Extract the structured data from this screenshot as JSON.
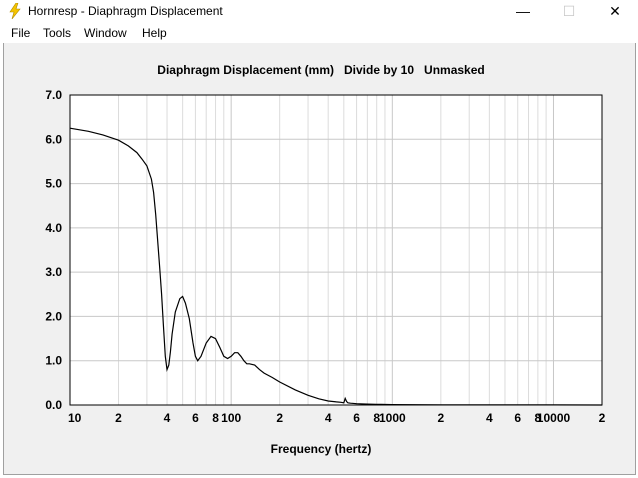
{
  "window": {
    "title": "Hornresp - Diaphragm Displacement",
    "controls": {
      "minimize": "—",
      "maximize": "☐",
      "close": "✕"
    }
  },
  "menu": [
    "File",
    "Tools",
    "Window",
    "Help"
  ],
  "colors": {
    "plot_bg": "#ffffff",
    "client_bg": "#f0f0f0",
    "grid": "#c8c8c8",
    "grid_minor": "#dcdcdc",
    "curve": "#000000"
  },
  "chart_data": {
    "type": "line",
    "title": "Diaphragm Displacement (mm)   Divide by 10   Unmasked",
    "xlabel": "Frequency (hertz)",
    "ylabel": "",
    "x_scale": "log",
    "xlim": [
      10,
      20000
    ],
    "ylim": [
      0,
      7
    ],
    "y_ticks": [
      "0.0",
      "1.0",
      "2.0",
      "3.0",
      "4.0",
      "5.0",
      "6.0",
      "7.0"
    ],
    "x_ticks": [
      {
        "value": 10,
        "label": "10"
      },
      {
        "value": 20,
        "label": "2"
      },
      {
        "value": 40,
        "label": "4"
      },
      {
        "value": 60,
        "label": "6"
      },
      {
        "value": 80,
        "label": "8"
      },
      {
        "value": 100,
        "label": "100"
      },
      {
        "value": 200,
        "label": "2"
      },
      {
        "value": 400,
        "label": "4"
      },
      {
        "value": 600,
        "label": "6"
      },
      {
        "value": 800,
        "label": "8"
      },
      {
        "value": 1000,
        "label": "1000"
      },
      {
        "value": 2000,
        "label": "2"
      },
      {
        "value": 4000,
        "label": "4"
      },
      {
        "value": 6000,
        "label": "6"
      },
      {
        "value": 8000,
        "label": "8"
      },
      {
        "value": 10000,
        "label": "10000"
      },
      {
        "value": 20000,
        "label": "2"
      }
    ],
    "grid": true,
    "legend": "none",
    "series": [
      {
        "x": [
          10,
          13,
          16,
          20,
          23,
          26,
          28,
          30,
          32,
          33,
          34,
          35,
          36,
          37,
          38,
          39,
          40,
          41,
          42,
          43,
          45,
          48,
          50,
          52,
          55,
          58,
          60,
          62,
          65,
          70,
          75,
          80,
          85,
          90,
          95,
          100,
          105,
          110,
          115,
          120,
          125,
          130,
          140,
          150,
          160,
          180,
          200,
          250,
          300,
          350,
          400,
          450,
          480,
          500,
          510,
          520,
          530,
          550,
          600,
          700,
          800,
          1000,
          2000,
          5000,
          10000,
          20000
        ],
        "y": [
          6.25,
          6.18,
          6.1,
          5.98,
          5.85,
          5.7,
          5.55,
          5.4,
          5.1,
          4.8,
          4.3,
          3.7,
          3.1,
          2.5,
          1.8,
          1.1,
          0.8,
          0.9,
          1.2,
          1.6,
          2.1,
          2.4,
          2.45,
          2.3,
          1.95,
          1.4,
          1.1,
          1.0,
          1.1,
          1.4,
          1.55,
          1.5,
          1.3,
          1.1,
          1.05,
          1.1,
          1.18,
          1.18,
          1.1,
          1.0,
          0.93,
          0.93,
          0.9,
          0.8,
          0.72,
          0.62,
          0.52,
          0.34,
          0.22,
          0.14,
          0.09,
          0.07,
          0.06,
          0.05,
          0.15,
          0.08,
          0.05,
          0.04,
          0.03,
          0.02,
          0.015,
          0.01,
          0.005,
          0.003,
          0.002,
          0.001
        ]
      }
    ]
  }
}
